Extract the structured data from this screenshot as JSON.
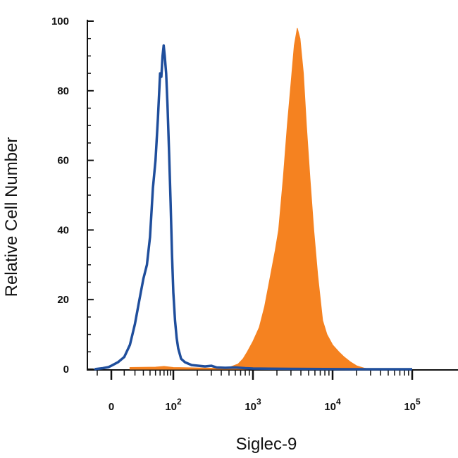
{
  "chart_data": {
    "type": "area",
    "xlabel": "Siglec-9",
    "ylabel": "Relative Cell Number",
    "x_scale": "biexponential",
    "ylim": [
      0,
      100
    ],
    "y_ticks": [
      {
        "value": 0,
        "label": "0"
      },
      {
        "value": 20,
        "label": "20"
      },
      {
        "value": 40,
        "label": "40"
      },
      {
        "value": 60,
        "label": "60"
      },
      {
        "value": 80,
        "label": "80"
      },
      {
        "value": 100,
        "label": "100"
      }
    ],
    "x_ticks": [
      {
        "value": 0,
        "base": "0",
        "exp": ""
      },
      {
        "value": 100,
        "base": "10",
        "exp": "2"
      },
      {
        "value": 1000,
        "base": "10",
        "exp": "3"
      },
      {
        "value": 10000,
        "base": "10",
        "exp": "4"
      },
      {
        "value": 100000,
        "base": "10",
        "exp": "5"
      }
    ],
    "grid": false,
    "legend": "none",
    "series": [
      {
        "style": "filled",
        "color": "#F58220",
        "points": [
          [
            15,
            0.5
          ],
          [
            50,
            0.6
          ],
          [
            70,
            0.8
          ],
          [
            100,
            0.5
          ],
          [
            300,
            0.3
          ],
          [
            500,
            0.5
          ],
          [
            650,
            1.5
          ],
          [
            750,
            3
          ],
          [
            850,
            5
          ],
          [
            1000,
            8
          ],
          [
            1200,
            12
          ],
          [
            1400,
            18
          ],
          [
            1600,
            25
          ],
          [
            1900,
            34
          ],
          [
            2100,
            40
          ],
          [
            2400,
            55
          ],
          [
            2700,
            70
          ],
          [
            3000,
            82
          ],
          [
            3300,
            93
          ],
          [
            3600,
            98
          ],
          [
            3900,
            95
          ],
          [
            4300,
            85
          ],
          [
            4700,
            70
          ],
          [
            5200,
            55
          ],
          [
            5800,
            40
          ],
          [
            6500,
            27
          ],
          [
            7500,
            14
          ],
          [
            8500,
            10
          ],
          [
            10000,
            7
          ],
          [
            12000,
            5
          ],
          [
            14000,
            3.5
          ],
          [
            17000,
            2
          ],
          [
            20000,
            1
          ],
          [
            25000,
            0.3
          ],
          [
            30000,
            0
          ]
        ]
      },
      {
        "style": "line",
        "color": "#1F4E9C",
        "points": [
          [
            -60,
            0
          ],
          [
            -30,
            0.3
          ],
          [
            -10,
            0.6
          ],
          [
            0,
            1
          ],
          [
            5,
            2
          ],
          [
            10,
            3.5
          ],
          [
            15,
            7
          ],
          [
            20,
            13
          ],
          [
            25,
            20
          ],
          [
            30,
            26
          ],
          [
            35,
            30
          ],
          [
            40,
            38
          ],
          [
            45,
            52
          ],
          [
            50,
            60
          ],
          [
            55,
            72
          ],
          [
            60,
            85
          ],
          [
            63,
            84
          ],
          [
            66,
            90
          ],
          [
            69,
            93
          ],
          [
            72,
            90
          ],
          [
            76,
            85
          ],
          [
            80,
            76
          ],
          [
            85,
            62
          ],
          [
            90,
            48
          ],
          [
            95,
            33
          ],
          [
            100,
            22
          ],
          [
            105,
            14
          ],
          [
            110,
            9
          ],
          [
            115,
            6
          ],
          [
            125,
            3
          ],
          [
            140,
            2
          ],
          [
            170,
            1.2
          ],
          [
            250,
            0.8
          ],
          [
            300,
            1
          ],
          [
            350,
            0.5
          ],
          [
            450,
            0.4
          ],
          [
            600,
            0.5
          ],
          [
            800,
            0.3
          ],
          [
            1000,
            0.2
          ],
          [
            3000,
            0.1
          ],
          [
            20000,
            0
          ],
          [
            100000,
            0
          ]
        ]
      }
    ]
  }
}
